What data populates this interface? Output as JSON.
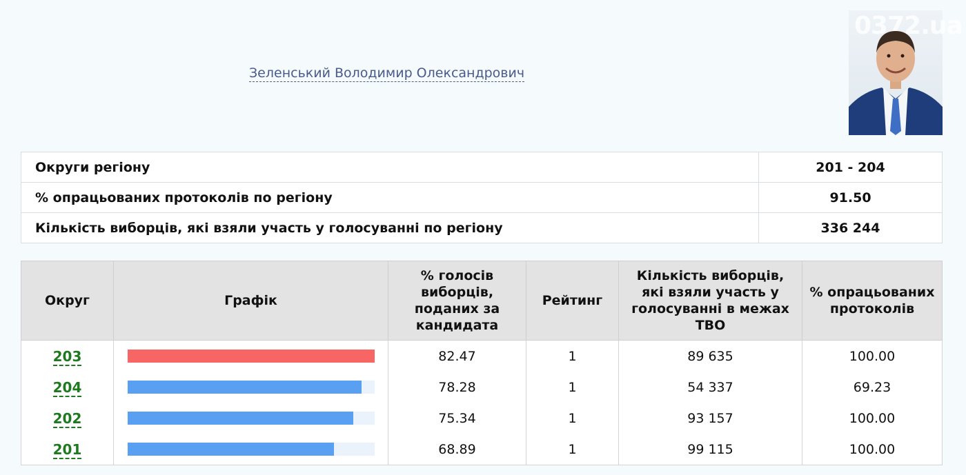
{
  "candidate": {
    "name": "Зеленський Володимир Олександрович"
  },
  "photo": {
    "watermark": "0372.ua"
  },
  "summary": [
    {
      "label": "Округи регіону",
      "value": "201 - 204"
    },
    {
      "label": "% опрацьованих протоколів по регіону",
      "value": "91.50"
    },
    {
      "label": "Кількість виборців, які взяли участь у голосуванні по регіону",
      "value": "336 244"
    }
  ],
  "results": {
    "headers": {
      "district": "Округ",
      "chart": "Графік",
      "vote_pct": "% голосів виборців, поданих за кандидата",
      "rating": "Рейтинг",
      "voters": "Кількість виборців, які взяли участь у голосуванні в межах ТВО",
      "processed": "% опрацьованих протоколів"
    },
    "rows": [
      {
        "district": "203",
        "vote_pct": "82.47",
        "bar_fraction": 1.0,
        "bar_color": "#f76565",
        "rating": "1",
        "voters": "89 635",
        "processed": "100.00"
      },
      {
        "district": "204",
        "vote_pct": "78.28",
        "bar_fraction": 0.949,
        "bar_color": "#5aa0f2",
        "rating": "1",
        "voters": "54 337",
        "processed": "69.23"
      },
      {
        "district": "202",
        "vote_pct": "75.34",
        "bar_fraction": 0.914,
        "bar_color": "#5aa0f2",
        "rating": "1",
        "voters": "93 157",
        "processed": "100.00"
      },
      {
        "district": "201",
        "vote_pct": "68.89",
        "bar_fraction": 0.836,
        "bar_color": "#5aa0f2",
        "rating": "1",
        "voters": "99 115",
        "processed": "100.00"
      }
    ]
  }
}
